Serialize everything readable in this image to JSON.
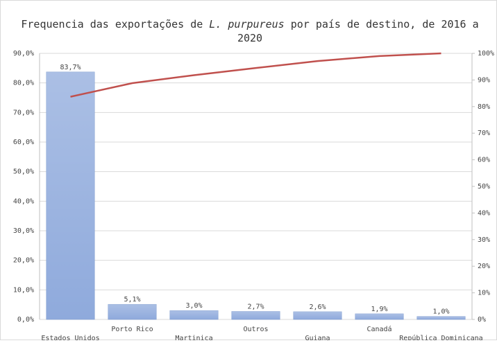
{
  "chart_data": {
    "type": "pareto",
    "title": [
      [
        "Frequencia das exportações de ",
        "L. purpureus",
        " por país de destino, de 2016 a"
      ],
      [
        "2020"
      ]
    ],
    "categories": [
      "Estados Unidos",
      "Porto Rico",
      "Martinica",
      "Outros",
      "Guiana",
      "Canadá",
      "República Dominicana"
    ],
    "series": [
      {
        "type": "bar",
        "color": "#8faadc",
        "values": [
          83.7,
          5.1,
          3.0,
          2.7,
          2.6,
          1.9,
          1.0
        ],
        "value_labels": [
          "83,7%",
          "5,1%",
          "3,0%",
          "2,7%",
          "2,6%",
          "1,9%",
          "1,0%"
        ]
      },
      {
        "type": "line",
        "axis": "y2",
        "color": "#c0504d",
        "values": [
          83.7,
          88.8,
          91.8,
          94.5,
          97.1,
          99.0,
          100
        ]
      }
    ],
    "ylim": [
      0,
      90
    ],
    "yticks": [
      {
        "value": 0,
        "label": "0,0%"
      },
      {
        "value": 10,
        "label": "10,0%"
      },
      {
        "value": 20,
        "label": "20,0%"
      },
      {
        "value": 30,
        "label": "30,0%"
      },
      {
        "value": 40,
        "label": "40,0%"
      },
      {
        "value": 50,
        "label": "50,0%"
      },
      {
        "value": 60,
        "label": "60,0%"
      },
      {
        "value": 70,
        "label": "70,0%"
      },
      {
        "value": 80,
        "label": "80,0%"
      },
      {
        "value": 90,
        "label": "90,0%"
      }
    ],
    "y2lim": [
      0,
      100
    ],
    "y2ticks": [
      {
        "value": 0,
        "label": "0%"
      },
      {
        "value": 10,
        "label": "10%"
      },
      {
        "value": 20,
        "label": "20%"
      },
      {
        "value": 30,
        "label": "30%"
      },
      {
        "value": 40,
        "label": "40%"
      },
      {
        "value": 50,
        "label": "50%"
      },
      {
        "value": 60,
        "label": "60%"
      },
      {
        "value": 70,
        "label": "70%"
      },
      {
        "value": 80,
        "label": "80%"
      },
      {
        "value": 90,
        "label": "90%"
      },
      {
        "value": 100,
        "label": "100%"
      }
    ],
    "grid": true
  }
}
